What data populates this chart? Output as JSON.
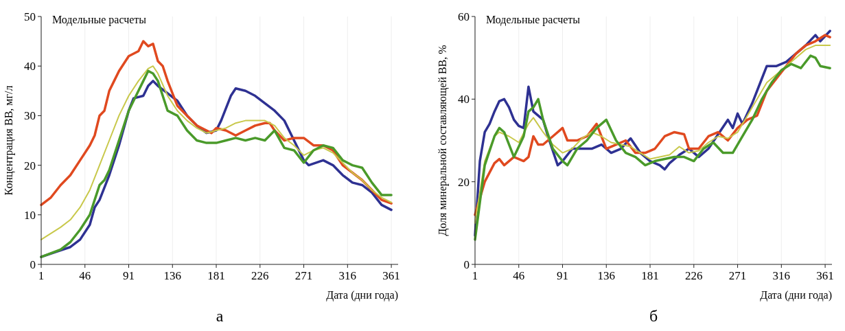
{
  "chart_data": [
    {
      "type": "line",
      "title": "Модельные расчеты",
      "xlabel": "Дата (дни года)",
      "ylabel": "Концентрация ВВ, мг/л",
      "annotations": [
        "а"
      ],
      "xlim": [
        1,
        368
      ],
      "xticks": [
        1,
        46,
        91,
        136,
        181,
        226,
        271,
        316,
        361
      ],
      "ylim": [
        0,
        50
      ],
      "yticks": [
        0,
        10,
        20,
        30,
        40,
        50
      ],
      "grid": "x",
      "series": [
        {
          "color": "#2e3192",
          "x": [
            1,
            16,
            31,
            41,
            51,
            56,
            61,
            71,
            81,
            91,
            96,
            106,
            111,
            116,
            121,
            131,
            141,
            151,
            161,
            171,
            181,
            186,
            196,
            201,
            211,
            221,
            231,
            241,
            251,
            261,
            271,
            276,
            291,
            301,
            311,
            321,
            331,
            341,
            351,
            361
          ],
          "values": [
            1.5,
            2.5,
            3.5,
            5,
            8,
            11.5,
            13,
            18,
            24,
            31,
            33.5,
            34,
            36,
            37,
            36,
            34.5,
            33,
            30,
            28,
            26.5,
            27,
            29,
            34,
            35.5,
            35,
            34,
            32.5,
            31,
            29,
            25,
            21,
            20,
            21,
            20,
            18,
            16.5,
            16,
            14.5,
            12,
            11
          ]
        },
        {
          "color": "#e0491f",
          "x": [
            1,
            11,
            21,
            31,
            41,
            51,
            56,
            61,
            66,
            71,
            76,
            81,
            91,
            101,
            106,
            111,
            116,
            121,
            126,
            131,
            141,
            151,
            161,
            171,
            176,
            181,
            191,
            201,
            211,
            221,
            231,
            236,
            241,
            251,
            261,
            271,
            281,
            291,
            301,
            311,
            321,
            331,
            341,
            351,
            361
          ],
          "values": [
            12,
            13.5,
            16,
            18,
            21,
            24,
            26,
            30,
            31,
            35,
            37,
            39,
            42,
            43,
            45,
            44,
            44.5,
            41,
            40,
            37,
            32,
            30,
            28,
            27,
            26.5,
            27.5,
            27,
            26,
            27,
            28,
            28.5,
            28.5,
            27,
            25,
            25.5,
            25.5,
            24,
            24,
            23,
            20,
            18.5,
            17,
            15,
            13,
            12.3
          ]
        },
        {
          "color": "#c8c84a",
          "x": [
            1,
            21,
            31,
            41,
            51,
            61,
            71,
            81,
            91,
            101,
            111,
            116,
            121,
            131,
            141,
            151,
            161,
            171,
            181,
            191,
            201,
            211,
            221,
            231,
            241,
            251,
            261,
            271,
            281,
            291,
            301,
            311,
            321,
            331,
            341,
            351,
            361
          ],
          "values": [
            5,
            7.5,
            9,
            11.5,
            15,
            20,
            25,
            30,
            34,
            37,
            39.5,
            40,
            38.5,
            34,
            31,
            29,
            27.5,
            26.5,
            27,
            27.5,
            28.5,
            29,
            29,
            29,
            28,
            25.5,
            24,
            22,
            23,
            23.5,
            22.5,
            20.5,
            18.5,
            17,
            15,
            13.5,
            12.5
          ]
        },
        {
          "color": "#4a9a2a",
          "x": [
            1,
            21,
            31,
            41,
            51,
            56,
            61,
            66,
            71,
            81,
            91,
            101,
            106,
            111,
            116,
            121,
            131,
            141,
            151,
            161,
            171,
            181,
            191,
            201,
            211,
            221,
            231,
            236,
            241,
            251,
            261,
            271,
            281,
            291,
            301,
            311,
            321,
            331,
            341,
            351,
            361
          ],
          "values": [
            1.5,
            3,
            4.5,
            7,
            10,
            13,
            16,
            17,
            19,
            25,
            31,
            35,
            37,
            39,
            38.5,
            37,
            31,
            30,
            27,
            25,
            24.5,
            24.5,
            25,
            25.5,
            25,
            25.5,
            25,
            26,
            27,
            23.5,
            23,
            20.5,
            23,
            24,
            23.5,
            21,
            20,
            19.5,
            16.5,
            14,
            14
          ]
        }
      ]
    },
    {
      "type": "line",
      "title": "Модельные расчеты",
      "xlabel": "Дата (дни года)",
      "ylabel": "Доля минеральной составляющей ВВ, %",
      "annotations": [
        "б"
      ],
      "xlim": [
        1,
        368
      ],
      "xticks": [
        1,
        46,
        91,
        136,
        181,
        226,
        271,
        316,
        361
      ],
      "ylim": [
        0,
        60
      ],
      "yticks": [
        0,
        20,
        40,
        60
      ],
      "grid": "x",
      "series": [
        {
          "color": "#2e3192",
          "x": [
            1,
            6,
            11,
            16,
            21,
            26,
            31,
            36,
            41,
            46,
            51,
            56,
            61,
            71,
            76,
            86,
            91,
            101,
            111,
            121,
            131,
            141,
            151,
            161,
            171,
            181,
            191,
            196,
            201,
            211,
            221,
            231,
            241,
            251,
            261,
            266,
            271,
            276,
            286,
            296,
            301,
            311,
            321,
            331,
            341,
            351,
            356,
            366
          ],
          "values": [
            7,
            25,
            32,
            34,
            37,
            39.5,
            40,
            38,
            35,
            33.5,
            33,
            43,
            37,
            35,
            31,
            24,
            25,
            28,
            28,
            28,
            29,
            27,
            28,
            30.5,
            27,
            25,
            24,
            23,
            24.5,
            26.5,
            28,
            26,
            28,
            31.5,
            35,
            33,
            36.5,
            34,
            39,
            45,
            48,
            48,
            49,
            51,
            53,
            55.5,
            54,
            56.5
          ]
        },
        {
          "color": "#e0491f",
          "x": [
            1,
            11,
            21,
            26,
            31,
            41,
            51,
            56,
            61,
            66,
            71,
            81,
            91,
            96,
            106,
            116,
            126,
            136,
            146,
            156,
            166,
            176,
            186,
            196,
            206,
            216,
            221,
            231,
            241,
            251,
            261,
            271,
            281,
            291,
            301,
            311,
            321,
            331,
            341,
            351,
            361,
            366
          ],
          "values": [
            12,
            20,
            24.5,
            25.5,
            24,
            26,
            25,
            26,
            31,
            29,
            29,
            31,
            33,
            30,
            30,
            31,
            34,
            28,
            29,
            30,
            27,
            27,
            28,
            31,
            32,
            31.5,
            28,
            28,
            31,
            32,
            30,
            33,
            35,
            36,
            42,
            45,
            48,
            51,
            53,
            54,
            55.5,
            55
          ]
        },
        {
          "color": "#c8c84a",
          "x": [
            1,
            11,
            21,
            26,
            36,
            46,
            56,
            61,
            71,
            81,
            91,
            101,
            111,
            121,
            131,
            141,
            151,
            161,
            171,
            181,
            191,
            201,
            211,
            221,
            231,
            241,
            251,
            261,
            271,
            281,
            291,
            301,
            311,
            321,
            331,
            341,
            351,
            366
          ],
          "values": [
            10,
            25,
            31,
            32,
            31,
            29.5,
            34,
            35.5,
            32,
            29,
            27,
            28,
            30.5,
            32,
            31,
            29.5,
            29,
            28.5,
            27,
            25.5,
            26,
            26.5,
            28.5,
            27,
            27.5,
            29.5,
            31,
            30.5,
            32,
            36,
            40,
            44,
            46,
            48,
            50,
            52,
            53,
            53
          ]
        },
        {
          "color": "#4a9a2a",
          "x": [
            1,
            11,
            21,
            26,
            31,
            41,
            51,
            56,
            61,
            66,
            71,
            81,
            91,
            96,
            106,
            116,
            126,
            136,
            146,
            156,
            166,
            176,
            186,
            196,
            206,
            216,
            226,
            236,
            246,
            256,
            266,
            276,
            286,
            296,
            306,
            316,
            326,
            336,
            346,
            351,
            356,
            366
          ],
          "values": [
            6,
            24,
            31,
            33,
            32,
            26,
            31,
            37,
            38,
            40,
            35,
            28,
            25,
            24,
            28,
            30,
            33,
            35,
            30,
            27,
            26,
            24,
            25,
            25.5,
            26,
            26,
            25,
            28,
            29.5,
            27,
            27,
            31,
            35,
            40,
            44,
            47,
            48.5,
            47.5,
            50.5,
            50,
            48,
            47.5
          ]
        }
      ]
    }
  ]
}
